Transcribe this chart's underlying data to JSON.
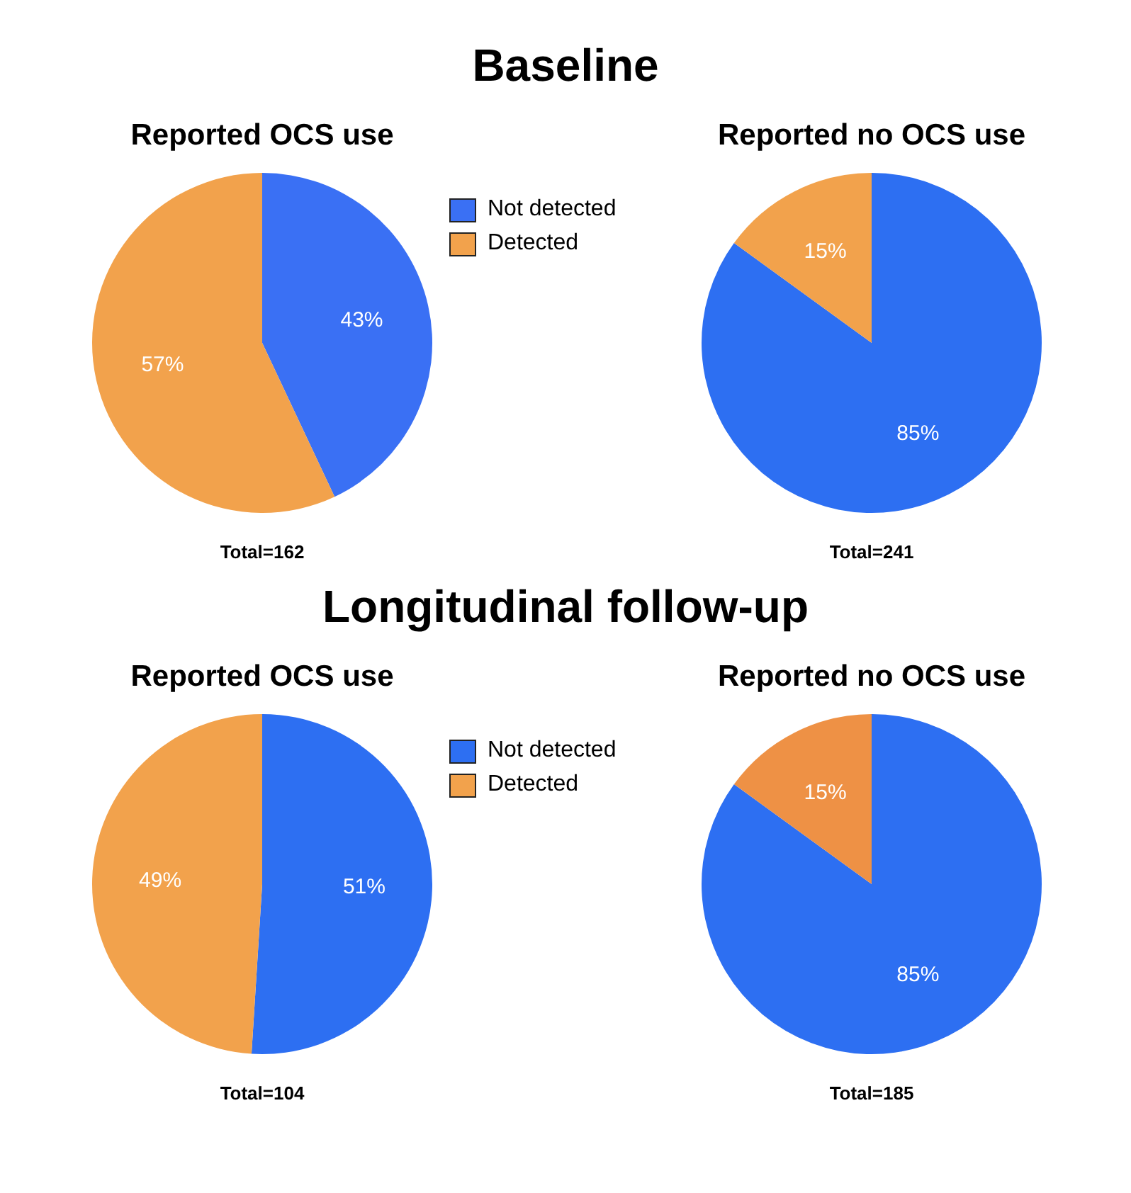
{
  "chart_data": [
    {
      "type": "pie",
      "subtitle": "Baseline",
      "title": "Reported OCS use",
      "categories": [
        "Not detected",
        "Detected"
      ],
      "values": [
        43,
        57
      ],
      "value_labels": [
        "43%",
        "57%"
      ],
      "colors": [
        "#3a70f4",
        "#f2a24c"
      ],
      "legend": "right",
      "annotations": [
        "Total=162"
      ]
    },
    {
      "type": "pie",
      "title": "Reported no OCS use",
      "categories": [
        null,
        null
      ],
      "values": [
        85,
        15
      ],
      "value_labels": [
        "85%",
        "15%"
      ],
      "colors": [
        "#2d6ff2",
        "#f2a24c"
      ],
      "annotations": [
        "Total=241"
      ]
    },
    {
      "type": "pie",
      "subtitle": "Longitudinal follow-up",
      "title": "Reported OCS use",
      "categories": [
        "Not detected",
        "Detected"
      ],
      "values": [
        51,
        49
      ],
      "value_labels": [
        "51%",
        "49%"
      ],
      "colors": [
        "#2d6ff2",
        "#f2a24c"
      ],
      "legend": "right",
      "annotations": [
        "Total=104"
      ]
    },
    {
      "type": "pie",
      "title": "Reported no OCS use",
      "categories": [
        null,
        null
      ],
      "values": [
        85,
        15
      ],
      "value_labels": [
        "85%",
        "15%"
      ],
      "colors": [
        "#2d6ff2",
        "#ee9145"
      ],
      "annotations": [
        "Total=185"
      ]
    }
  ]
}
